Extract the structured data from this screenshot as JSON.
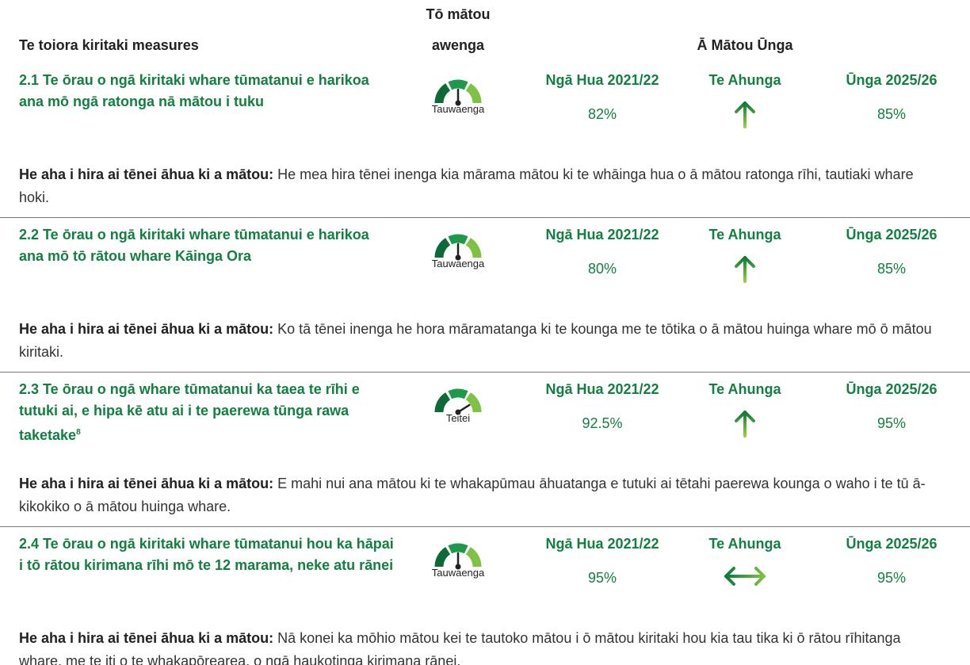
{
  "header": {
    "measures": "Te toiora kiritaki measures",
    "awenga": [
      "Tō mātou",
      "awenga"
    ],
    "unga": "Ā Mātou Ūnga"
  },
  "rows": [
    {
      "title": "2.1 Te ōrau o ngā kiritaki whare tūmatanui e harikoa ana mō ngā ratonga nā mātou i tuku",
      "gauge": "Tauwaenga",
      "needle": "up",
      "result_label": "Ngā Hua 2021/22",
      "result": "82%",
      "direction_label": "Te Ahunga",
      "direction": "up",
      "target_label": "Ūnga 2025/26",
      "target": "85%",
      "why_label": "He aha i hira ai tēnei āhua ki a mātou:",
      "why": "He mea hira tēnei inenga kia mārama mātou ki te whāinga hua o ā mātou ratonga rīhi, tautiaki whare hoki."
    },
    {
      "title": "2.2 Te ōrau o ngā kiritaki whare tūmatanui e harikoa ana mō tō rātou whare Kāinga Ora",
      "gauge": "Tauwaenga",
      "needle": "up",
      "result_label": "Ngā Hua 2021/22",
      "result": "80%",
      "direction_label": "Te Ahunga",
      "direction": "up",
      "target_label": "Ūnga 2025/26",
      "target": "85%",
      "why_label": "He aha i hira ai tēnei āhua ki a mātou:",
      "why": "Ko tā tēnei inenga he hora māramatanga ki te kounga me te tōtika o ā mātou huinga whare mō ō mātou kiritaki."
    },
    {
      "title": "2.3 Te ōrau o ngā whare tūmatanui ka taea te rīhi e tutuki ai, e hipa kē atu ai i te paerewa tūnga rawa taketake",
      "footnote": "8",
      "gauge": "Teitei",
      "needle": "right",
      "result_label": "Ngā Hua 2021/22",
      "result": "92.5%",
      "direction_label": "Te Ahunga",
      "direction": "up",
      "target_label": "Ūnga 2025/26",
      "target": "95%",
      "why_label": "He aha i hira ai tēnei āhua ki a mātou:",
      "why": "E mahi nui ana mātou ki te whakapūmau āhuatanga e tutuki ai tētahi paerewa kounga o waho i te tū ā-kikokiko o ā mātou huinga whare."
    },
    {
      "title": "2.4 Te ōrau o ngā kiritaki whare tūmatanui hou ka hāpai i tō rātou kirimana rīhi mō te 12 marama, neke atu rānei",
      "gauge": "Tauwaenga",
      "needle": "up",
      "result_label": "Ngā Hua 2021/22",
      "result": "95%",
      "direction_label": "Te Ahunga",
      "direction": "both",
      "target_label": "Ūnga 2025/26",
      "target": "95%",
      "why_label": "He aha i hira ai tēnei āhua ki a mātou:",
      "why": "Nā konei ka mōhio mātou kei te tautoko mātou i ō mātou kiritaki hou kia tau tika ki ō rātou rīhitanga whare, me te iti o te whakapōrearea, o ngā haukotinga kirimana rānei."
    }
  ]
}
